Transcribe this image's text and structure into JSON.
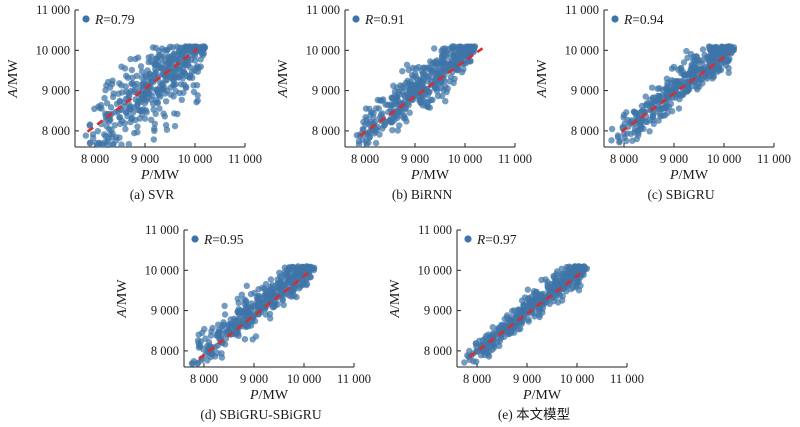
{
  "colors": {
    "point": "#3f74a8",
    "fit_line": "#d32f2f",
    "axis": "#222222"
  },
  "chart_data": [
    {
      "type": "scatter",
      "caption": "(a) SVR",
      "xlabel": {
        "var": "P",
        "unit": "/MW"
      },
      "ylabel": {
        "var": "A",
        "unit": "/MW"
      },
      "xlim": [
        7600,
        11000
      ],
      "ylim": [
        7600,
        11000
      ],
      "xticks": [
        8000,
        9000,
        10000,
        11000
      ],
      "yticks": [
        8000,
        9000,
        10000,
        11000
      ],
      "xtick_labels": [
        "8 000",
        "9 000",
        "10 000",
        "11 000"
      ],
      "ytick_labels": [
        "8 000",
        "9 000",
        "10 000",
        "11 000"
      ],
      "legend": {
        "var": "R",
        "value": "=0.79"
      },
      "R": 0.79,
      "x_range": [
        7800,
        10150
      ],
      "fit_line": [
        [
          7850,
          7980
        ],
        [
          10050,
          10030
        ]
      ],
      "legend_placement": "top-left",
      "grid": false
    },
    {
      "type": "scatter",
      "caption": "(b) BiRNN",
      "xlabel": {
        "var": "P",
        "unit": "/MW"
      },
      "ylabel": {
        "var": "A",
        "unit": "/MW"
      },
      "xlim": [
        7600,
        11000
      ],
      "ylim": [
        7600,
        11000
      ],
      "xticks": [
        8000,
        9000,
        10000,
        11000
      ],
      "yticks": [
        8000,
        9000,
        10000,
        11000
      ],
      "xtick_labels": [
        "8 000",
        "9 000",
        "10 000",
        "11 000"
      ],
      "ytick_labels": [
        "8 000",
        "9 000",
        "10 000",
        "11 000"
      ],
      "legend": {
        "var": "R",
        "value": "=0.91"
      },
      "R": 0.91,
      "x_range": [
        7800,
        10150
      ],
      "fit_line": [
        [
          7900,
          7880
        ],
        [
          10350,
          10050
        ]
      ],
      "legend_placement": "top-left",
      "grid": false
    },
    {
      "type": "scatter",
      "caption": "(c) SBiGRU",
      "xlabel": {
        "var": "P",
        "unit": "/MW"
      },
      "ylabel": {
        "var": "A",
        "unit": "/MW"
      },
      "xlim": [
        7600,
        11000
      ],
      "ylim": [
        7600,
        11000
      ],
      "xticks": [
        8000,
        9000,
        10000,
        11000
      ],
      "yticks": [
        8000,
        9000,
        10000,
        11000
      ],
      "xtick_labels": [
        "8 000",
        "9 000",
        "10 000",
        "11 000"
      ],
      "ytick_labels": [
        "8 000",
        "9 000",
        "10 000",
        "11 000"
      ],
      "legend": {
        "var": "R",
        "value": "=0.94"
      },
      "R": 0.94,
      "x_range": [
        7800,
        10150
      ],
      "fit_line": [
        [
          7950,
          7980
        ],
        [
          10100,
          9920
        ]
      ],
      "legend_placement": "top-left",
      "grid": false
    },
    {
      "type": "scatter",
      "caption": "(d) SBiGRU-SBiGRU",
      "xlabel": {
        "var": "P",
        "unit": "/MW"
      },
      "ylabel": {
        "var": "A",
        "unit": "/MW"
      },
      "xlim": [
        7600,
        11000
      ],
      "ylim": [
        7600,
        11000
      ],
      "xticks": [
        8000,
        9000,
        10000,
        11000
      ],
      "yticks": [
        8000,
        9000,
        10000,
        11000
      ],
      "xtick_labels": [
        "8 000",
        "9 000",
        "10 000",
        "11 000"
      ],
      "ytick_labels": [
        "8 000",
        "9 000",
        "10 000",
        "11 000"
      ],
      "legend": {
        "var": "R",
        "value": "=0.95"
      },
      "R": 0.95,
      "x_range": [
        7750,
        10150
      ],
      "fit_line": [
        [
          7900,
          7800
        ],
        [
          10100,
          9950
        ]
      ],
      "legend_placement": "top-left",
      "grid": false
    },
    {
      "type": "scatter",
      "caption": "(e) 本文模型",
      "xlabel": {
        "var": "P",
        "unit": "/MW"
      },
      "ylabel": {
        "var": "A",
        "unit": "/MW"
      },
      "xlim": [
        7600,
        11000
      ],
      "ylim": [
        7600,
        11000
      ],
      "xticks": [
        8000,
        9000,
        10000,
        11000
      ],
      "yticks": [
        8000,
        9000,
        10000,
        11000
      ],
      "xtick_labels": [
        "8 000",
        "9 000",
        "10 000",
        "11 000"
      ],
      "ytick_labels": [
        "8 000",
        "9 000",
        "10 000",
        "11 000"
      ],
      "legend": {
        "var": "R",
        "value": "=0.97"
      },
      "R": 0.97,
      "x_range": [
        7750,
        10150
      ],
      "fit_line": [
        [
          7850,
          7850
        ],
        [
          10100,
          9950
        ]
      ],
      "legend_placement": "top-left",
      "grid": false
    }
  ]
}
